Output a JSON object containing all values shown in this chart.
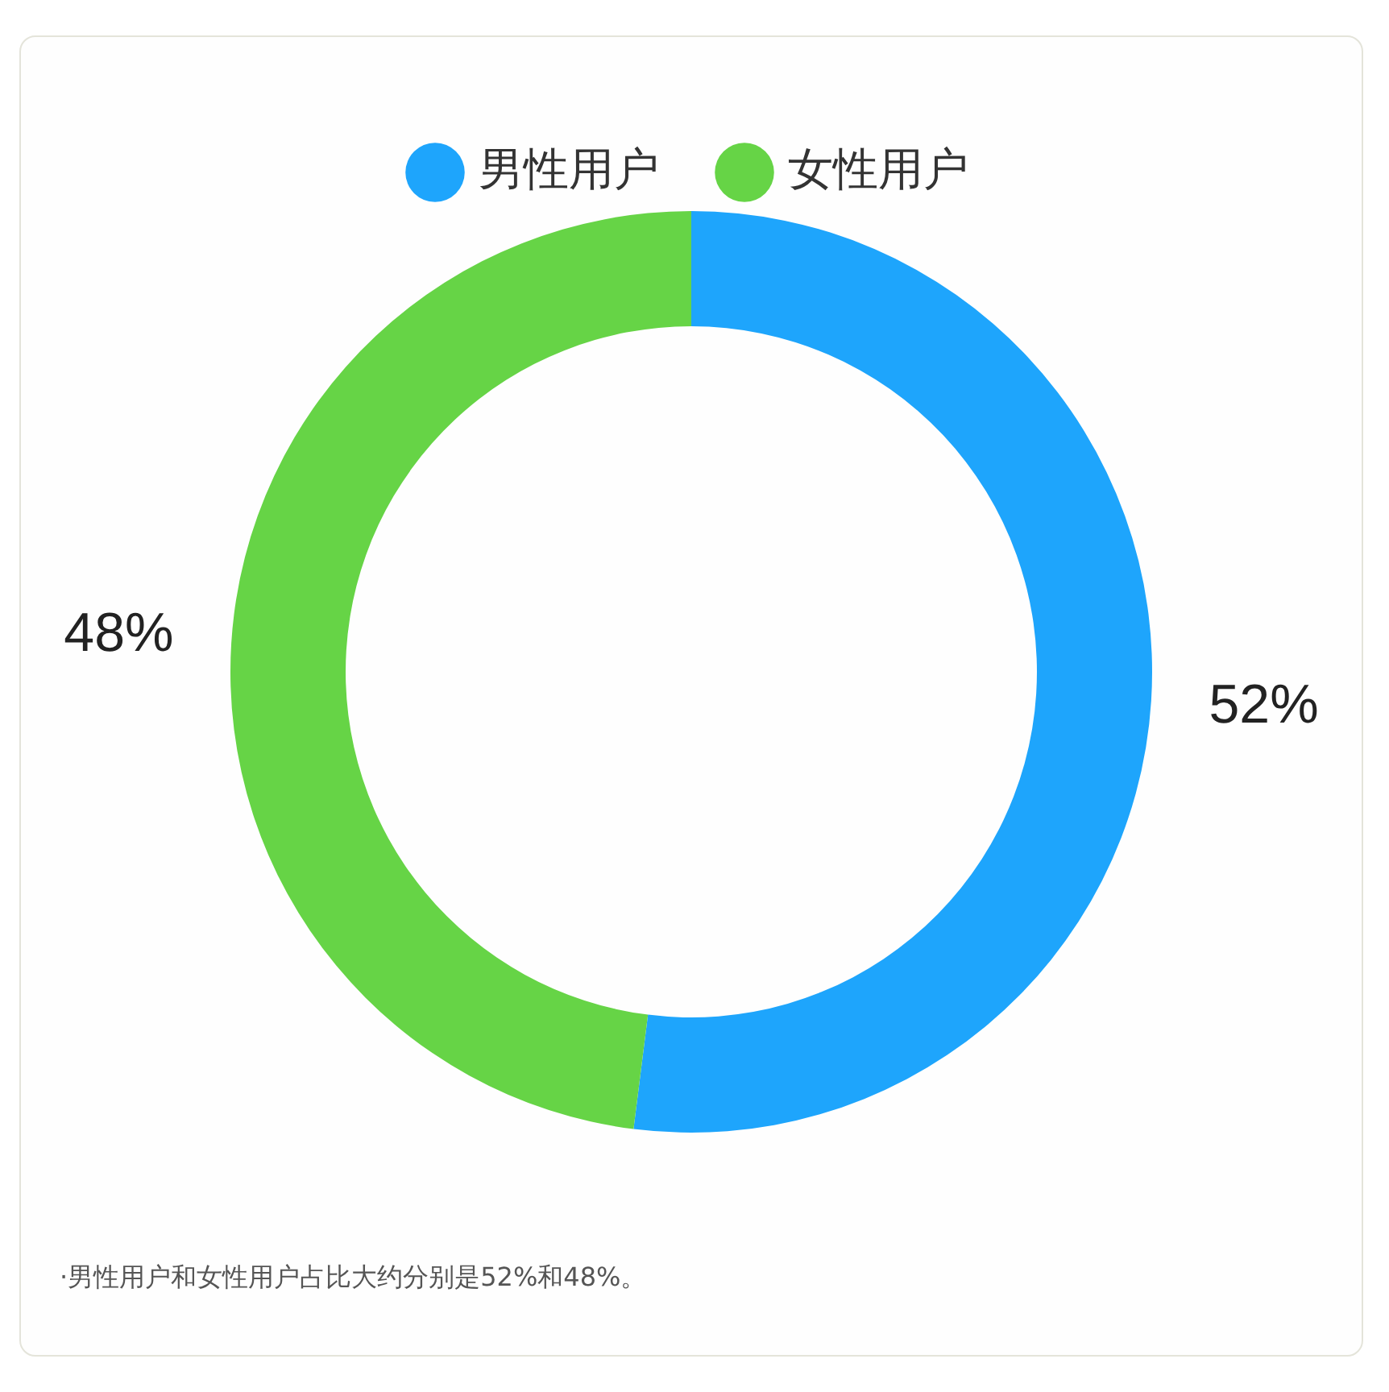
{
  "chart_data": {
    "type": "donut",
    "categories": [
      "男性用户",
      "女性用户"
    ],
    "values": [
      52,
      48
    ],
    "colors": [
      "#1ea5fc",
      "#66d446"
    ],
    "value_labels": [
      "52%",
      "48%"
    ],
    "legend": "top",
    "annotations": [
      "·男性用户和女性用户占比大约分别是52%和48%。"
    ]
  }
}
